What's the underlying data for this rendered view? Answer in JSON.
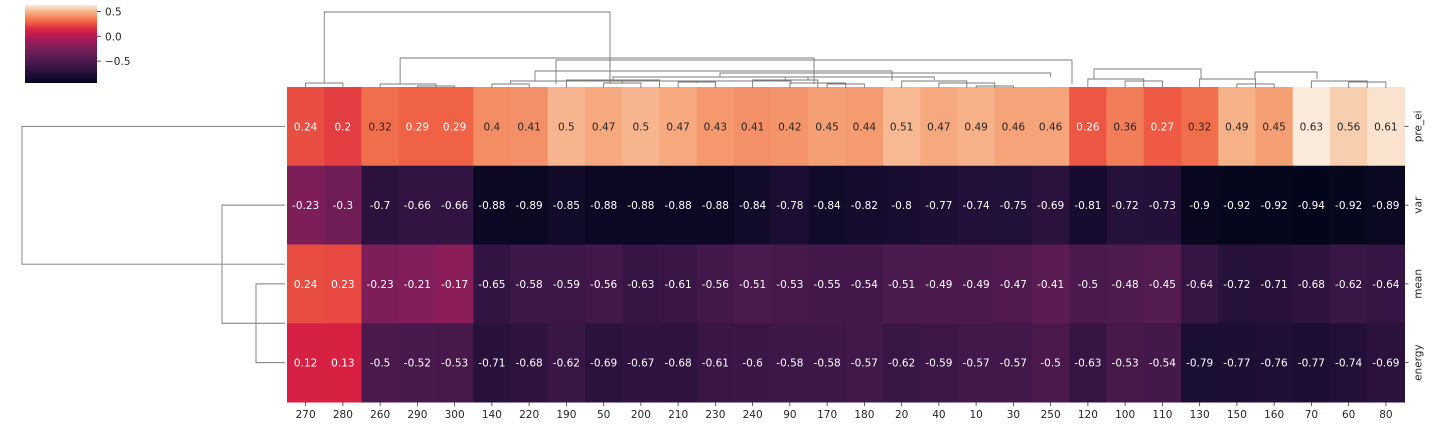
{
  "chart_data": {
    "type": "heatmap",
    "title": "",
    "xlabel": "",
    "ylabel": "",
    "columns": [
      "270",
      "280",
      "260",
      "290",
      "300",
      "140",
      "220",
      "190",
      "50",
      "200",
      "210",
      "230",
      "240",
      "90",
      "170",
      "180",
      "20",
      "40",
      "10",
      "30",
      "250",
      "120",
      "100",
      "110",
      "130",
      "150",
      "160",
      "70",
      "60",
      "80"
    ],
    "rows": [
      "pre_ei",
      "var",
      "mean",
      "energy"
    ],
    "values": [
      [
        0.24,
        0.2,
        0.32,
        0.29,
        0.29,
        0.4,
        0.41,
        0.5,
        0.47,
        0.5,
        0.47,
        0.43,
        0.41,
        0.42,
        0.45,
        0.44,
        0.51,
        0.47,
        0.49,
        0.46,
        0.46,
        0.26,
        0.36,
        0.27,
        0.32,
        0.49,
        0.45,
        0.63,
        0.56,
        0.61
      ],
      [
        -0.23,
        -0.3,
        -0.7,
        -0.66,
        -0.66,
        -0.88,
        -0.89,
        -0.85,
        -0.88,
        -0.88,
        -0.88,
        -0.88,
        -0.84,
        -0.78,
        -0.84,
        -0.82,
        -0.8,
        -0.77,
        -0.74,
        -0.75,
        -0.69,
        -0.81,
        -0.72,
        -0.73,
        -0.9,
        -0.92,
        -0.92,
        -0.94,
        -0.92,
        -0.89
      ],
      [
        0.24,
        0.23,
        -0.23,
        -0.21,
        -0.17,
        -0.65,
        -0.58,
        -0.59,
        -0.56,
        -0.63,
        -0.61,
        -0.56,
        -0.51,
        -0.53,
        -0.55,
        -0.54,
        -0.51,
        -0.49,
        -0.49,
        -0.47,
        -0.41,
        -0.5,
        -0.48,
        -0.45,
        -0.64,
        -0.72,
        -0.71,
        -0.68,
        -0.62,
        -0.64
      ],
      [
        0.12,
        0.13,
        -0.5,
        -0.52,
        -0.53,
        -0.71,
        -0.68,
        -0.62,
        -0.69,
        -0.67,
        -0.68,
        -0.61,
        -0.6,
        -0.58,
        -0.58,
        -0.57,
        -0.62,
        -0.59,
        -0.57,
        -0.57,
        -0.5,
        -0.63,
        -0.53,
        -0.54,
        -0.79,
        -0.77,
        -0.76,
        -0.77,
        -0.74,
        -0.69
      ]
    ],
    "colormap": "rocket",
    "value_range": [
      -0.94,
      0.63
    ],
    "colorbar": {
      "ticks": [
        0.5,
        0.0,
        -0.5
      ],
      "tick_labels": [
        "0.5",
        "0.0",
        "−0.5"
      ]
    },
    "row_dendrogram": true,
    "column_dendrogram": true,
    "annotations": true
  }
}
